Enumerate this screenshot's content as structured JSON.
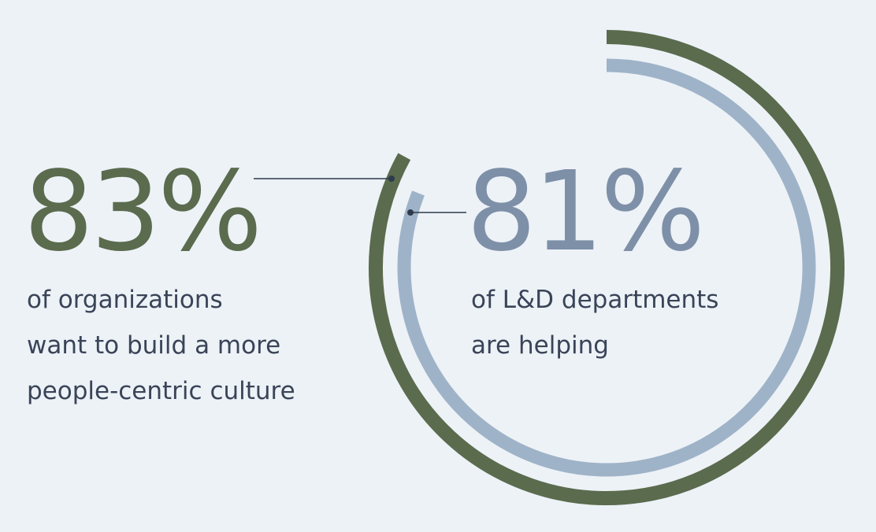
{
  "chart_data": {
    "type": "radial-bar",
    "title": "",
    "series": [
      {
        "value_label": "83%",
        "value": 83,
        "text": "of organizations\nwant to build a more\npeople-centric culture",
        "color": "#5b6b4e"
      },
      {
        "value_label": "81%",
        "value": 81,
        "text": "of L&D departments\nare helping",
        "color": "#9fb3c8",
        "label_color": "#7e90a8"
      }
    ]
  },
  "leader_line_color": "#2f3a4c",
  "background": "#edf2f7"
}
